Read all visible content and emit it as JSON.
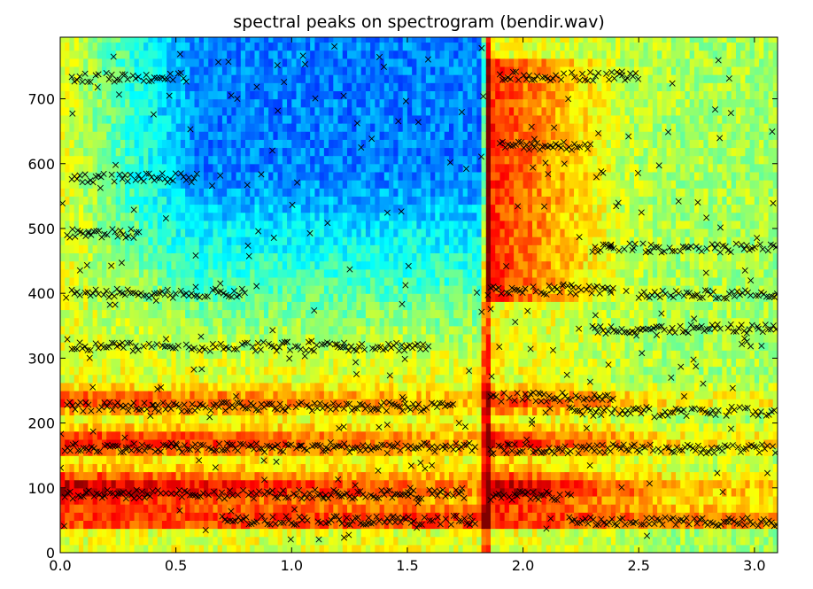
{
  "chart_data": {
    "type": "heatmap",
    "title": "spectral peaks on spectrogram (bendir.wav)",
    "xlabel": "",
    "ylabel": "",
    "xlim": [
      0.0,
      3.1
    ],
    "ylim": [
      0,
      795
    ],
    "x_ticks": [
      0.0,
      0.5,
      1.0,
      1.5,
      2.0,
      2.5,
      3.0
    ],
    "x_tick_labels": [
      "0.0",
      "0.5",
      "1.0",
      "1.5",
      "2.0",
      "2.5",
      "3.0"
    ],
    "y_ticks": [
      0,
      100,
      200,
      300,
      400,
      500,
      600,
      700
    ],
    "y_tick_labels": [
      "0",
      "100",
      "200",
      "300",
      "400",
      "500",
      "600",
      "700"
    ],
    "colormap": "jet",
    "grid": false,
    "onset_time": 1.84,
    "marker": "x",
    "marker_color": "#000000",
    "peak_tracks": [
      {
        "start": 0.02,
        "end": 1.75,
        "freq": 90
      },
      {
        "start": 0.02,
        "end": 1.78,
        "freq": 162
      },
      {
        "start": 0.03,
        "end": 1.7,
        "freq": 225
      },
      {
        "start": 0.05,
        "end": 1.6,
        "freq": 318
      },
      {
        "start": 0.05,
        "end": 0.8,
        "freq": 400
      },
      {
        "start": 0.03,
        "end": 0.35,
        "freq": 492
      },
      {
        "start": 0.05,
        "end": 0.6,
        "freq": 578
      },
      {
        "start": 0.05,
        "end": 0.55,
        "freq": 733
      },
      {
        "start": 0.7,
        "end": 1.8,
        "freq": 50
      },
      {
        "start": 1.86,
        "end": 2.2,
        "freq": 88
      },
      {
        "start": 2.2,
        "end": 3.1,
        "freq": 48
      },
      {
        "start": 1.86,
        "end": 3.1,
        "freq": 160
      },
      {
        "start": 1.86,
        "end": 2.4,
        "freq": 240
      },
      {
        "start": 2.2,
        "end": 3.1,
        "freq": 218
      },
      {
        "start": 1.86,
        "end": 2.4,
        "freq": 405
      },
      {
        "start": 2.5,
        "end": 3.1,
        "freq": 398
      },
      {
        "start": 2.3,
        "end": 3.1,
        "freq": 470
      },
      {
        "start": 1.9,
        "end": 2.3,
        "freq": 628
      },
      {
        "start": 1.9,
        "end": 2.5,
        "freq": 735
      },
      {
        "start": 2.3,
        "end": 3.1,
        "freq": 345
      }
    ],
    "energy_bands": [
      {
        "freq": 92,
        "width": 28,
        "level": 1.0
      },
      {
        "freq": 165,
        "width": 22,
        "level": 0.78
      },
      {
        "freq": 228,
        "width": 20,
        "level": 0.62
      },
      {
        "freq": 52,
        "width": 14,
        "level": 0.6
      },
      {
        "freq": 40,
        "width": 10,
        "level": 0.5
      }
    ]
  }
}
